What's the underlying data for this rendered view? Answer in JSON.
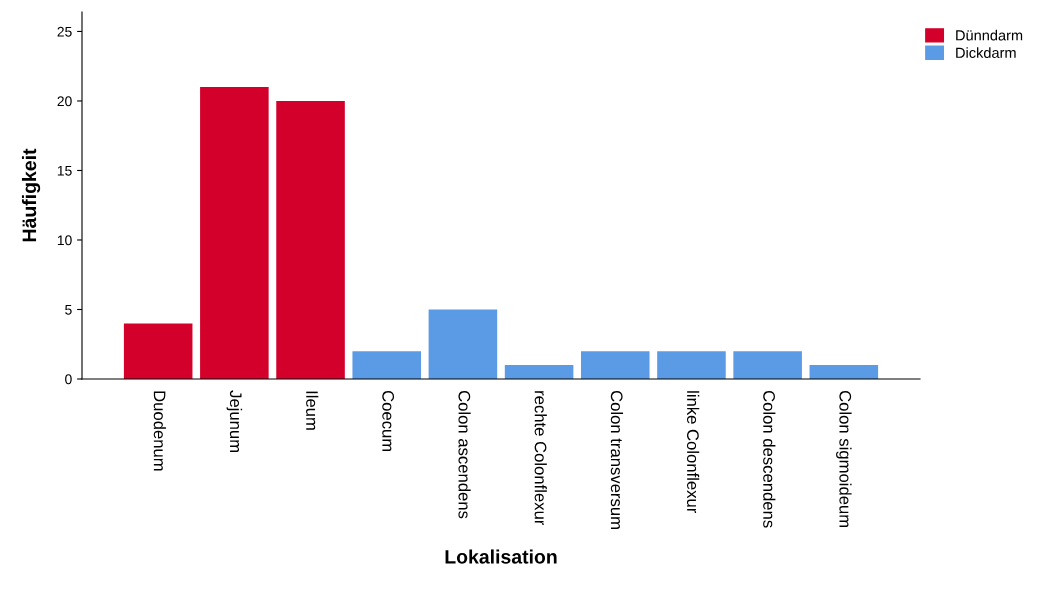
{
  "chart_data": {
    "type": "bar",
    "xlabel": "Lokalisation",
    "ylabel": "Häufigkeit",
    "categories": [
      "Duodenum",
      "Jejunum",
      "Ileum",
      "Coecum",
      "Colon ascendens",
      "rechte Colonflexur",
      "Colon transversum",
      "linke Colonflexur",
      "Colon descendens",
      "Colon sigmoideum"
    ],
    "series": [
      {
        "name": "Dünndarm",
        "color": "#d3002c",
        "values": [
          4,
          21,
          20,
          null,
          null,
          null,
          null,
          null,
          null,
          null
        ]
      },
      {
        "name": "Dickdarm",
        "color": "#5b9be6",
        "values": [
          null,
          null,
          null,
          2,
          5,
          1,
          2,
          2,
          2,
          1
        ]
      }
    ],
    "ylim": [
      0,
      26.4
    ],
    "yticks": [
      0,
      5,
      10,
      15,
      20,
      25
    ],
    "grid": false,
    "legend": "top right"
  }
}
